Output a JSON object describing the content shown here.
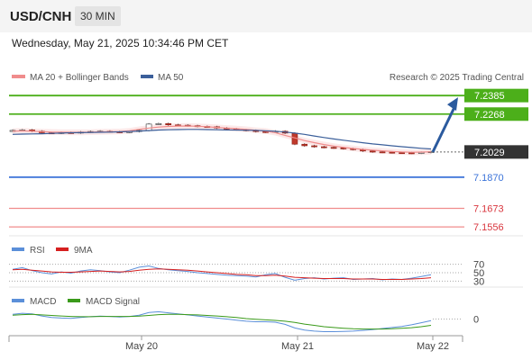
{
  "header": {
    "symbol": "USD/CNH",
    "timeframe": "30 MIN"
  },
  "timestamp": "Wednesday, May 21, 2025 10:34:46 PM CET",
  "credit": "Research © 2025 Trading Central",
  "colors": {
    "resistance": "#4caf1a",
    "support": "#3b73d9",
    "pivot_support": "#f08c8c",
    "current": "#333333",
    "arrow": "#2b5a9e",
    "ma20": "#f08c8c",
    "ma50": "#3b5f9a",
    "rsi": "#5b8fd9",
    "rsi_ma": "#d62020",
    "macd": "#5b8fd9",
    "macd_signal": "#3a9a1a"
  },
  "chart_data": [
    {
      "type": "candlestick",
      "title": "",
      "legend": [
        "MA 20 + Bollinger Bands",
        "MA 50"
      ],
      "legend_placement": "top-left",
      "x_ticks": [
        "May 20",
        "May 21",
        "May 22"
      ],
      "ylim": [
        7.15,
        7.242
      ],
      "current_price": 7.2029,
      "levels": [
        {
          "label": "7.2385",
          "value": 7.2385,
          "kind": "resistance"
        },
        {
          "label": "7.2268",
          "value": 7.2268,
          "kind": "resistance"
        },
        {
          "label": "7.2029",
          "value": 7.2029,
          "kind": "current"
        },
        {
          "label": "7.1870",
          "value": 7.187,
          "kind": "support"
        },
        {
          "label": "7.1673",
          "value": 7.1673,
          "kind": "pivot_support"
        },
        {
          "label": "7.1556",
          "value": 7.1556,
          "kind": "pivot_support"
        }
      ],
      "close_series": [
        7.2165,
        7.2168,
        7.216,
        7.215,
        7.2148,
        7.2152,
        7.215,
        7.2155,
        7.2158,
        7.216,
        7.2157,
        7.2155,
        7.2158,
        7.2165,
        7.2205,
        7.2208,
        7.22,
        7.2198,
        7.2195,
        7.219,
        7.2188,
        7.218,
        7.2175,
        7.217,
        7.2165,
        7.2158,
        7.2155,
        7.216,
        7.2148,
        7.2078,
        7.2068,
        7.2062,
        7.2058,
        7.2055,
        7.205,
        7.2045,
        7.2035,
        7.203,
        7.2028,
        7.2025,
        7.2024,
        7.2022,
        7.2026,
        7.2031
      ],
      "ma20_series": [
        7.216,
        7.2162,
        7.216,
        7.2157,
        7.2155,
        7.2154,
        7.2153,
        7.2153,
        7.2154,
        7.2156,
        7.2157,
        7.2158,
        7.2162,
        7.2172,
        7.218,
        7.2186,
        7.219,
        7.2192,
        7.2193,
        7.2191,
        7.2188,
        7.2184,
        7.218,
        7.2176,
        7.2172,
        7.2166,
        7.2161,
        7.2151,
        7.2134,
        7.2118,
        7.2101,
        7.2088,
        7.2076,
        7.2066,
        7.2058,
        7.2051,
        7.2045,
        7.204,
        7.2036,
        7.2032,
        7.2029,
        7.2027,
        7.2028,
        7.203
      ],
      "ma50_series": [
        7.214,
        7.2142,
        7.2143,
        7.2144,
        7.2146,
        7.2148,
        7.215,
        7.2151,
        7.2152,
        7.2153,
        7.2154,
        7.2156,
        7.2158,
        7.2161,
        7.2164,
        7.2167,
        7.2169,
        7.217,
        7.2171,
        7.2171,
        7.217,
        7.2169,
        7.2168,
        7.2167,
        7.2166,
        7.2165,
        7.2163,
        7.216,
        7.2155,
        7.2148,
        7.214,
        7.213,
        7.212,
        7.2111,
        7.2103,
        7.2095,
        7.2087,
        7.208,
        7.2074,
        7.2068,
        7.2062,
        7.2057,
        7.2052,
        7.2048
      ],
      "forecast_target": 7.2385
    },
    {
      "type": "line",
      "title": "",
      "legend": [
        "RSI",
        "9MA"
      ],
      "y_ticks": [
        "70",
        "50",
        "30"
      ],
      "ylim": [
        20,
        80
      ],
      "rsi_series": [
        58,
        62,
        55,
        50,
        47,
        52,
        49,
        54,
        57,
        55,
        52,
        50,
        56,
        63,
        66,
        60,
        57,
        55,
        53,
        50,
        48,
        46,
        44,
        43,
        42,
        40,
        45,
        48,
        39,
        32,
        36,
        38,
        35,
        37,
        38,
        34,
        35,
        36,
        33,
        35,
        34,
        37,
        41,
        45
      ],
      "rsi_ma_series": [
        57,
        58,
        56,
        54,
        52,
        51,
        51,
        52,
        53,
        54,
        53,
        52,
        53,
        56,
        58,
        59,
        58,
        57,
        56,
        54,
        52,
        50,
        48,
        46,
        45,
        43,
        43,
        44,
        42,
        39,
        38,
        37,
        36,
        36,
        36,
        35,
        35,
        35,
        34,
        34,
        34,
        35,
        36,
        38
      ]
    },
    {
      "type": "line",
      "title": "",
      "legend": [
        "MACD",
        "MACD Signal"
      ],
      "y_ticks": [
        "0"
      ],
      "ylim": [
        -0.006,
        0.005
      ],
      "macd_series": [
        0.0018,
        0.0022,
        0.002,
        0.0012,
        0.0006,
        0.0004,
        0.0003,
        0.0006,
        0.0009,
        0.0011,
        0.001,
        0.0008,
        0.001,
        0.0015,
        0.0025,
        0.0028,
        0.0024,
        0.002,
        0.0016,
        0.0012,
        0.0008,
        0.0004,
        0.0,
        -0.0004,
        -0.0008,
        -0.001,
        -0.001,
        -0.0012,
        -0.002,
        -0.0034,
        -0.0042,
        -0.0046,
        -0.0048,
        -0.0048,
        -0.0047,
        -0.0046,
        -0.0043,
        -0.004,
        -0.0036,
        -0.0032,
        -0.0028,
        -0.0022,
        -0.0014,
        -0.0006
      ],
      "signal_series": [
        0.0015,
        0.0017,
        0.0018,
        0.0016,
        0.0014,
        0.0012,
        0.001,
        0.0009,
        0.0009,
        0.001,
        0.001,
        0.001,
        0.001,
        0.0011,
        0.0014,
        0.0017,
        0.0018,
        0.0018,
        0.0017,
        0.0016,
        0.0014,
        0.0012,
        0.0009,
        0.0006,
        0.0002,
        -0.0001,
        -0.0003,
        -0.0005,
        -0.0008,
        -0.0013,
        -0.0019,
        -0.0024,
        -0.0029,
        -0.0032,
        -0.0035,
        -0.0037,
        -0.0038,
        -0.0038,
        -0.0038,
        -0.0037,
        -0.0035,
        -0.0033,
        -0.0029,
        -0.0024
      ]
    }
  ]
}
